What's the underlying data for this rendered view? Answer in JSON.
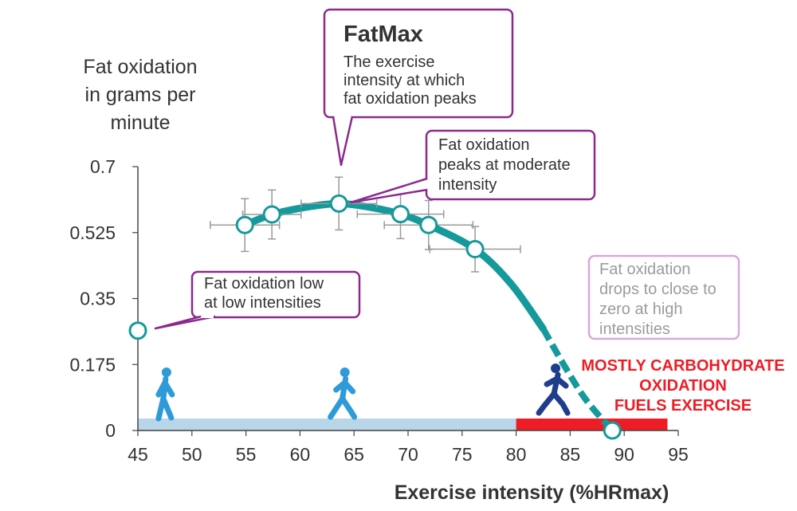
{
  "chart_data": {
    "type": "line",
    "y_axis_label_lines": [
      "Fat oxidation",
      "in grams per",
      "minute"
    ],
    "xlabel": "Exercise intensity (%HRmax)",
    "x_ticks": [
      45,
      50,
      55,
      60,
      65,
      70,
      75,
      80,
      85,
      90,
      95
    ],
    "y_ticks": [
      {
        "value": 0,
        "label": "0"
      },
      {
        "value": 0.175,
        "label": "0.175"
      },
      {
        "value": 0.35,
        "label": "0.35"
      },
      {
        "value": 0.525,
        "label": "0.525"
      },
      {
        "value": 0.7,
        "label": "0.7"
      }
    ],
    "xlim": [
      45,
      95
    ],
    "ylim": [
      0,
      0.7
    ],
    "grid": false,
    "series": [
      {
        "points": [
          {
            "x": 54.9,
            "y": 0.545,
            "x_err": 3.2,
            "y_err": 0.07
          },
          {
            "x": 57.4,
            "y": 0.573,
            "x_err": 2.7,
            "y_err": 0.065
          },
          {
            "x": 63.6,
            "y": 0.602,
            "x_err": 3.5,
            "y_err": 0.07
          },
          {
            "x": 69.3,
            "y": 0.574,
            "x_err": 4.0,
            "y_err": 0.065
          },
          {
            "x": 71.9,
            "y": 0.545,
            "x_err": 4.1,
            "y_err": 0.065
          },
          {
            "x": 76.2,
            "y": 0.481,
            "x_err": 4.2,
            "y_err": 0.06
          }
        ]
      }
    ],
    "endpoints": [
      {
        "x": 45,
        "y": 0.265
      },
      {
        "x": 88.9,
        "y": 0.0
      }
    ],
    "trend_curve": [
      [
        54.9,
        0.545
      ],
      [
        57.4,
        0.573
      ],
      [
        60.5,
        0.592
      ],
      [
        63.6,
        0.602
      ],
      [
        66.5,
        0.592
      ],
      [
        69.3,
        0.574
      ],
      [
        71.9,
        0.545
      ],
      [
        76.2,
        0.481
      ],
      [
        79.5,
        0.39
      ],
      [
        82.5,
        0.27
      ]
    ],
    "dashed_curve": [
      [
        82.5,
        0.27
      ],
      [
        84.5,
        0.17
      ],
      [
        86.5,
        0.08
      ],
      [
        88.9,
        0.0
      ]
    ],
    "bands": [
      {
        "x_start": 45,
        "x_end": 80,
        "color": "#b9d5e8"
      },
      {
        "x_start": 80,
        "x_end": 94,
        "color": "#ee1c25"
      }
    ],
    "band_label_lines": [
      "MOSTLY CARBOHYDRATE",
      "OXIDATION",
      "FUELS EXERCISE"
    ],
    "annotations": [
      {
        "id": "fatmax",
        "title": "FatMax",
        "lines": [
          "The exercise",
          "intensity at which",
          "fat oxidation peaks"
        ]
      },
      {
        "id": "moderate",
        "lines": [
          "Fat oxidation",
          "peaks at moderate",
          "intensity"
        ]
      },
      {
        "id": "low",
        "lines": [
          "Fat oxidation low",
          "at low intensities"
        ]
      },
      {
        "id": "high",
        "lines": [
          "Fat oxidation",
          "drops to close to",
          "zero at high",
          "intensities"
        ]
      }
    ],
    "figures": [
      {
        "icon": "walker-icon",
        "x": 47.5
      },
      {
        "icon": "jogger-icon",
        "x": 64
      },
      {
        "icon": "runner-icon",
        "x": 83.5
      }
    ],
    "colors": {
      "curve": "#15999b",
      "marker": "#15999b",
      "error_bar": "#9a9a9a",
      "callout_border": "#8b2a8e",
      "callout_faded_border": "#d9a8d9",
      "faded_text": "#9b9b9b",
      "axis": "#444444",
      "text": "#333333",
      "red_text": "#ee1c25",
      "figure_light": "#2f9ad8",
      "figure_dark": "#1f3d8a"
    }
  }
}
